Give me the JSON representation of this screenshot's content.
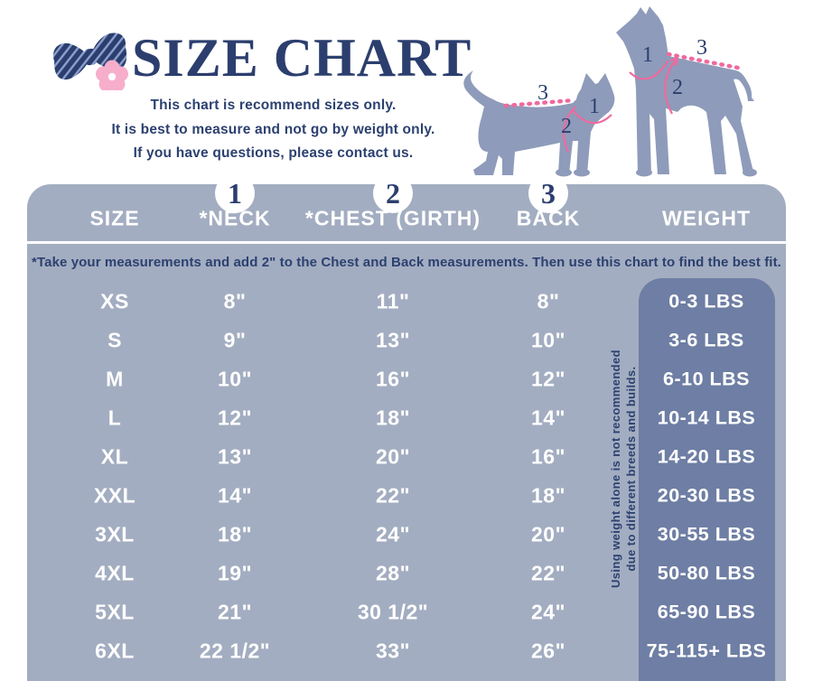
{
  "header": {
    "title": "SIZE CHART",
    "subtitle_lines": [
      "This chart is recommend sizes only.",
      "It is best to measure and not go by weight only.",
      "If you have questions, please contact us."
    ]
  },
  "diagram": {
    "neck_marker": "1",
    "chest_marker": "2",
    "back_marker": "3"
  },
  "table": {
    "markers": [
      "1",
      "2",
      "3"
    ],
    "note": "*Take your measurements and add 2\" to the Chest and Back measurements. Then use this chart to find the best fit.",
    "vertical_note_lines": [
      "Using weight alone is not recommended",
      "due to different breeds and builds."
    ]
  },
  "chart_data": {
    "type": "table",
    "title": "SIZE CHART",
    "columns": [
      "SIZE",
      "*NECK",
      "*CHEST (GIRTH)",
      "BACK",
      "WEIGHT"
    ],
    "rows": [
      [
        "XS",
        "8\"",
        "11\"",
        "8\"",
        "0-3 LBS"
      ],
      [
        "S",
        "9\"",
        "13\"",
        "10\"",
        "3-6 LBS"
      ],
      [
        "M",
        "10\"",
        "16\"",
        "12\"",
        "6-10 LBS"
      ],
      [
        "L",
        "12\"",
        "18\"",
        "14\"",
        "10-14 LBS"
      ],
      [
        "XL",
        "13\"",
        "20\"",
        "16\"",
        "14-20 LBS"
      ],
      [
        "XXL",
        "14\"",
        "22\"",
        "18\"",
        "20-30 LBS"
      ],
      [
        "3XL",
        "18\"",
        "24\"",
        "20\"",
        "30-55 LBS"
      ],
      [
        "4XL",
        "19\"",
        "28\"",
        "22\"",
        "50-80 LBS"
      ],
      [
        "5XL",
        "21\"",
        "30 1/2\"",
        "24\"",
        "65-90 LBS"
      ],
      [
        "6XL",
        "22 1/2\"",
        "33\"",
        "26\"",
        "75-115+ LBS"
      ]
    ]
  },
  "colors": {
    "navy": "#2b3e6e",
    "table_background": "#a3adc1",
    "weight_pill": "#6e7ea4",
    "silhouette": "#8e9bba",
    "measure_pink": "#ef6a9e",
    "flower_pink": "#f7aecb",
    "white": "#ffffff"
  }
}
